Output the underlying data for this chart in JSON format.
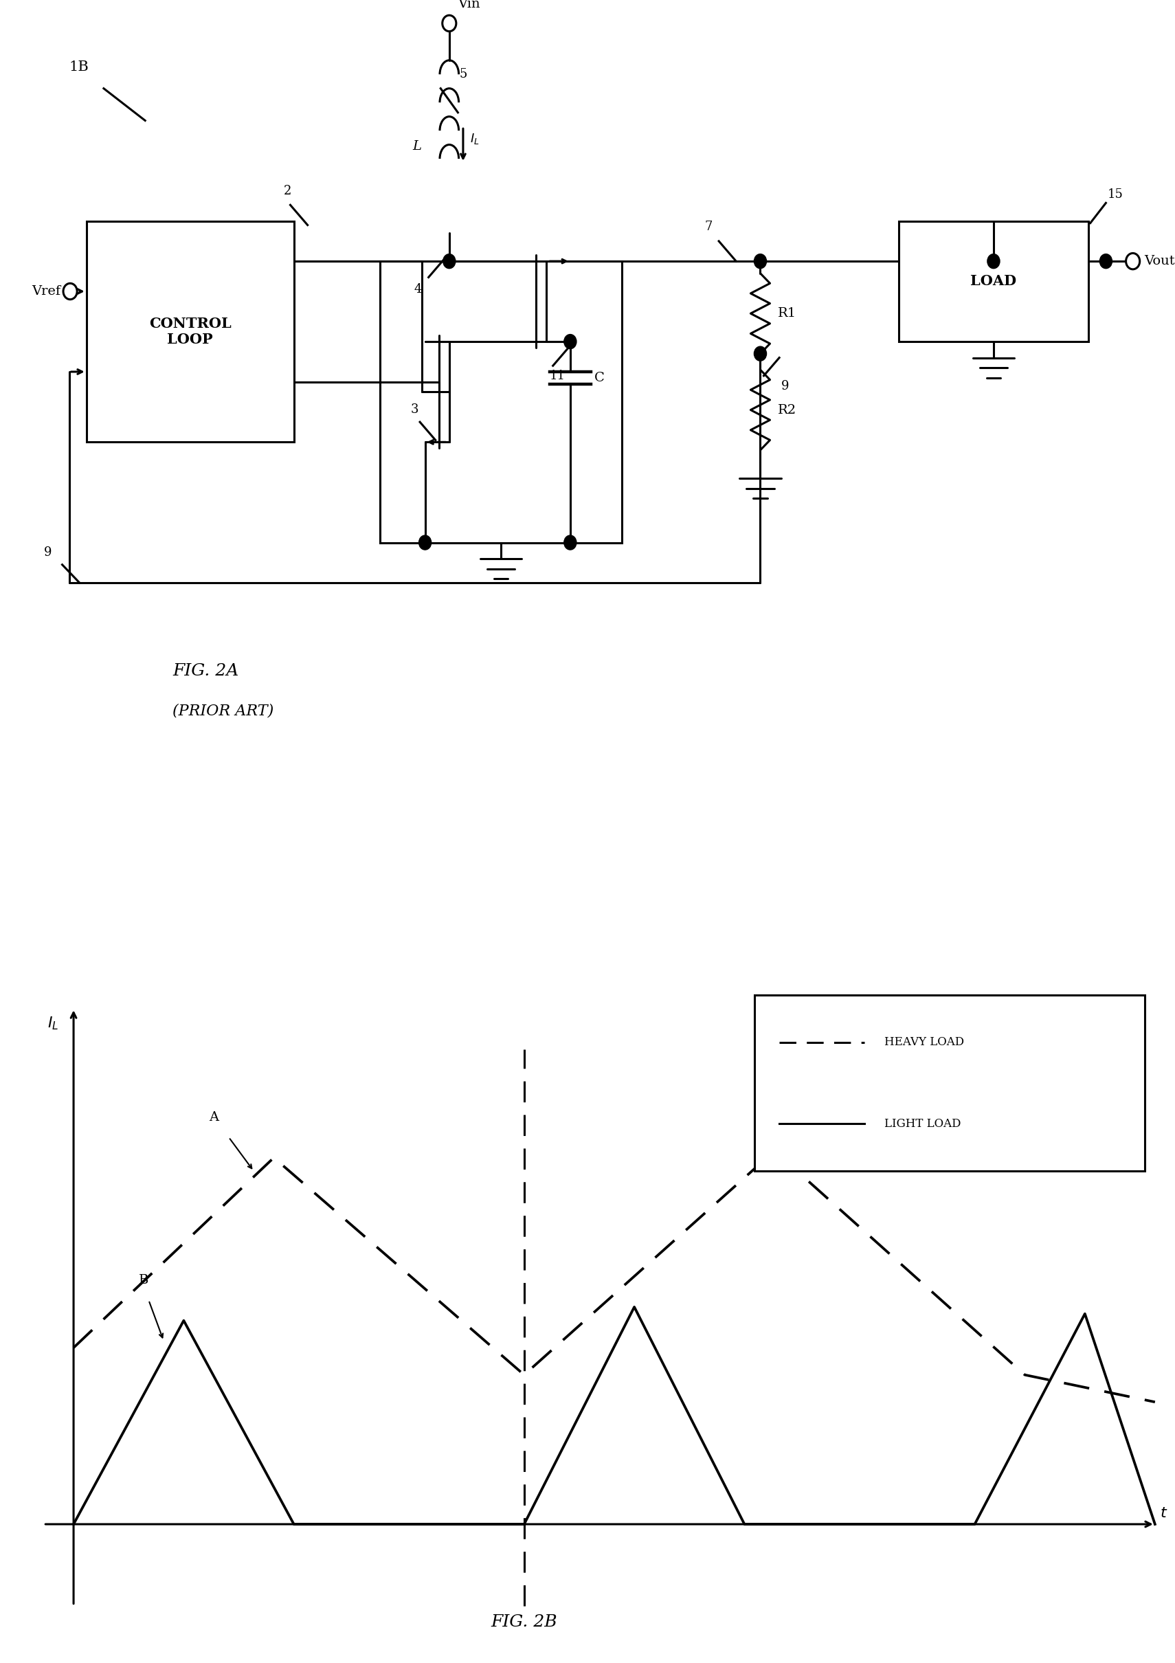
{
  "fig_width": 17.1,
  "fig_height": 24.2,
  "bg_color": "#ffffff",
  "line_color": "#000000",
  "lw": 2.2,
  "label_1B": "1B",
  "label_2": "2",
  "label_3": "3",
  "label_4": "4",
  "label_5": "5",
  "label_7": "7",
  "label_9": "9",
  "label_11": "11",
  "label_15": "15",
  "label_Vin": "Vin",
  "label_Vout": "Vout",
  "label_Vref": "Vref",
  "label_L": "L",
  "label_IL": "I_L",
  "label_C": "C",
  "label_R1": "R1",
  "label_R2": "R2",
  "label_control": "CONTROL\nLOOP",
  "label_load": "LOAD",
  "fig2a_title": "FIG. 2A",
  "fig2a_subtitle": "(PRIOR ART)",
  "fig2b_title": "FIG. 2B",
  "legend_heavy": "HEAVY LOAD",
  "legend_light": "LIGHT LOAD",
  "label_A": "A",
  "label_B": "B"
}
